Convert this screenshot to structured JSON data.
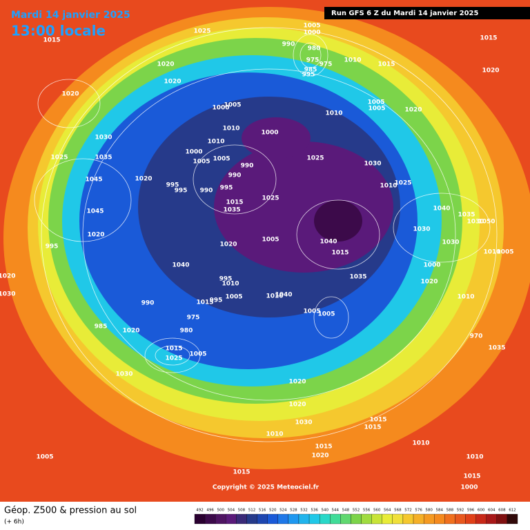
{
  "header": {
    "date": "Mardi 14 janvier 2025",
    "time": "13:00 locale",
    "run": "Run GFS 6 Z du Mardi 14 janvier 2025"
  },
  "footer": {
    "title": "Géop. Z500 & pression au sol",
    "lead": "(+ 6h)",
    "copyright": "Copyright © 2025 Meteociel.fr"
  },
  "legend": {
    "levels": [
      492,
      496,
      500,
      504,
      508,
      512,
      516,
      520,
      524,
      528,
      532,
      536,
      540,
      544,
      548,
      552,
      556,
      560,
      564,
      568,
      572,
      576,
      580,
      584,
      588,
      592,
      596,
      600,
      604,
      608,
      612
    ],
    "colors": [
      "#2a0030",
      "#3c0a4a",
      "#4e1462",
      "#5a1a7a",
      "#3a2a78",
      "#263a8a",
      "#1e46b0",
      "#1a5ad8",
      "#1e78e8",
      "#1e98f0",
      "#20b4ec",
      "#20c8e8",
      "#28d8c8",
      "#40dc98",
      "#60d870",
      "#7cd44a",
      "#a0dc40",
      "#c8e438",
      "#e8ec38",
      "#f0e03a",
      "#f5c82e",
      "#f5b028",
      "#f59a22",
      "#f58a1e",
      "#f0701e",
      "#e8581e",
      "#e04018",
      "#c82818",
      "#a81818",
      "#801010",
      "#300808"
    ]
  },
  "isobar_labels": [
    1025,
    1015,
    1005,
    1000,
    990,
    980,
    975,
    975,
    985,
    995,
    1010,
    1015,
    1015,
    1020,
    1020,
    1020,
    1020,
    1005,
    1005,
    1020,
    1010,
    1005,
    1000,
    1010,
    1000,
    1030,
    1025,
    1035,
    1010,
    1000,
    1005,
    1005,
    990,
    1025,
    1030,
    1045,
    1020,
    995,
    995,
    990,
    995,
    990,
    1025,
    1025,
    1010,
    1015,
    1035,
    1045,
    1040,
    1035,
    1030,
    1050,
    1030,
    1020,
    1020,
    1005,
    1040,
    1030,
    995,
    1015,
    1010,
    1005,
    1040,
    1000,
    1035,
    1020,
    1020,
    1030,
    1010,
    995,
    1040,
    1010,
    1010,
    990,
    1015,
    995,
    1005,
    1005,
    1005,
    985,
    1020,
    975,
    980,
    970,
    1015,
    1005,
    1025,
    1035,
    1030,
    1020,
    1020,
    1030,
    1015,
    1015,
    1010,
    1010,
    1015,
    1020,
    1010,
    1005,
    1015,
    1015,
    1000
  ]
}
